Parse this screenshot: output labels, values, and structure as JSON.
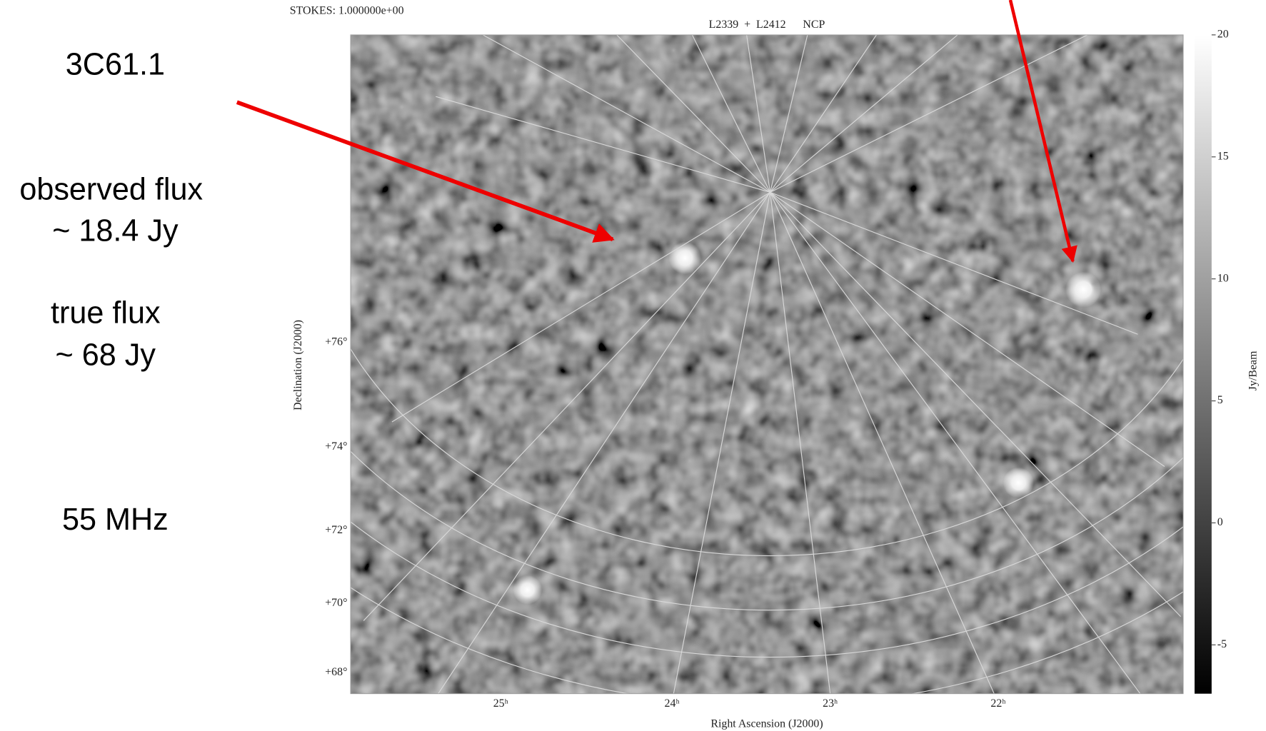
{
  "slide": {
    "source_name": "3C61.1",
    "observed_flux_label": "observed flux",
    "observed_flux": "~ 18.4 Jy",
    "true_flux_label": "true flux",
    "true_flux": "~ 68 Jy",
    "frequency": "55 MHz"
  },
  "image": {
    "stokes": "STOKES: 1.000000e+00",
    "title": "L2339  +  L2412      NCP",
    "x_label": "Right Ascension (J2000)",
    "y_label": "Declination (J2000)",
    "ra_ticks": [
      "25ʰ",
      "24ʰ",
      "23ʰ",
      "22ʰ"
    ],
    "dec_ticks": [
      "+76°",
      "+74°",
      "+72°",
      "+70°",
      "+68°"
    ],
    "colorbar": {
      "label": "Jy/Beam",
      "range": [
        -7,
        20
      ],
      "ticks": [
        -5,
        0,
        5,
        10,
        15,
        20
      ]
    }
  }
}
